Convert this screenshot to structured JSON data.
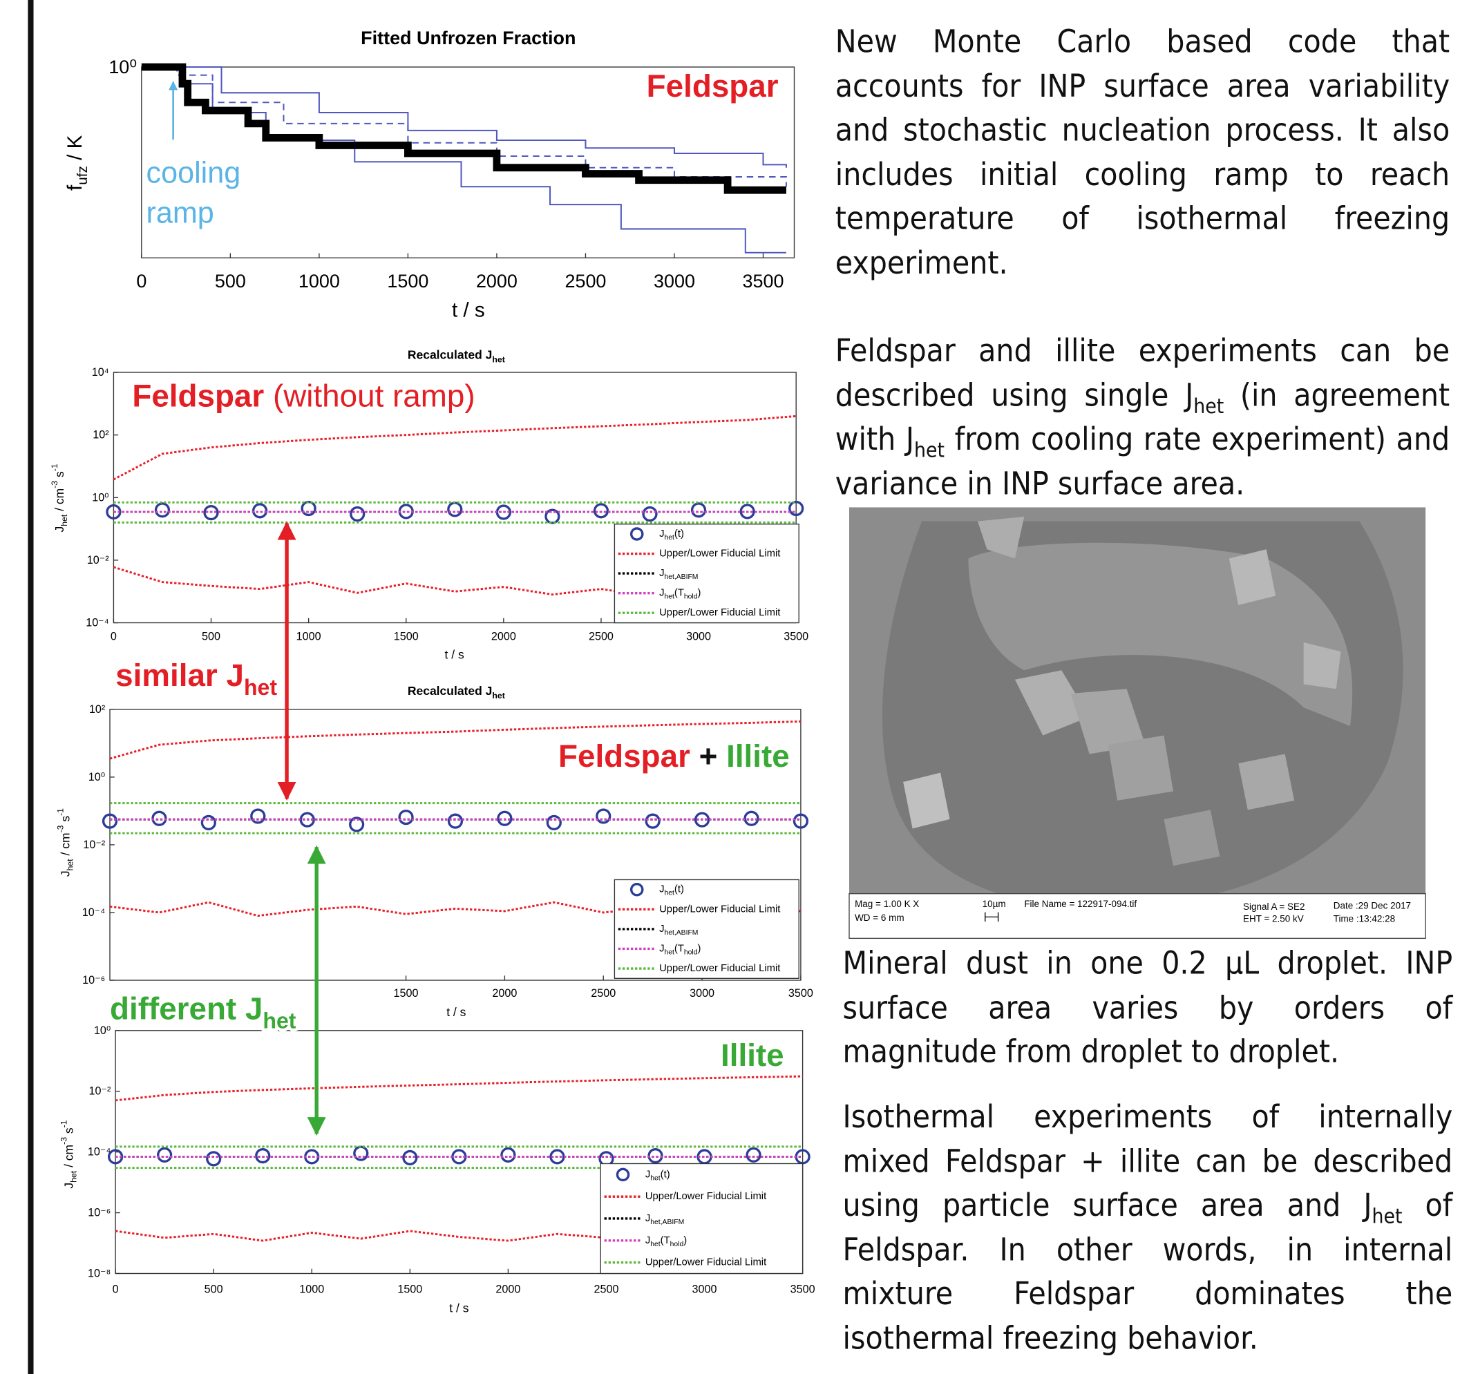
{
  "chart_data": [
    {
      "type": "line",
      "step": true,
      "log_y": true,
      "title": "Fitted Unfrozen Fraction",
      "xlabel": [
        "t / s"
      ],
      "ylabel": [
        "f",
        {
          "sub": "ufz"
        },
        " / K"
      ],
      "xlim": [
        0,
        3675
      ],
      "ylim": [
        0.3,
        1
      ],
      "xticks": [
        0,
        500,
        1000,
        1500,
        2000,
        2500,
        3000,
        3500
      ],
      "yticks": [
        {
          "value": 1,
          "label": "10⁰"
        }
      ],
      "series": [
        {
          "color": "#5058c0",
          "width": 1.5,
          "x": [
            0,
            250,
            450,
            1000,
            1500,
            2000,
            2500,
            3000,
            3500,
            3630
          ],
          "values": [
            1,
            1,
            0.85,
            0.75,
            0.67,
            0.63,
            0.6,
            0.58,
            0.54,
            0.53
          ]
        },
        {
          "color": "#5058c0",
          "width": 1.5,
          "x": [
            0,
            220,
            400,
            700,
            1200,
            1800,
            2300,
            2700,
            3400,
            3630
          ],
          "values": [
            1,
            0.9,
            0.75,
            0.63,
            0.55,
            0.47,
            0.42,
            0.36,
            0.31,
            0.31
          ]
        },
        {
          "color": "#5058c0",
          "width": 1.5,
          "dash": "dashed",
          "x": [
            0,
            200,
            400,
            800,
            1500,
            2000,
            2500,
            3000,
            3630
          ],
          "values": [
            1,
            0.95,
            0.8,
            0.7,
            0.62,
            0.57,
            0.53,
            0.5,
            0.47
          ]
        },
        {
          "color": "#000000",
          "width": 8,
          "x": [
            0,
            200,
            230,
            260,
            360,
            600,
            700,
            1000,
            1500,
            2000,
            2500,
            2800,
            3300,
            3630
          ],
          "values": [
            1,
            1,
            0.9,
            0.8,
            0.76,
            0.7,
            0.64,
            0.61,
            0.58,
            0.53,
            0.51,
            0.49,
            0.46,
            0.46
          ]
        }
      ],
      "annotations": [
        {
          "parts": [
            {
              "text": "Feldspar",
              "color": "#e31e24",
              "bold": true
            }
          ]
        },
        {
          "parts": [
            {
              "text": "cooling",
              "color": "#5ab4e5"
            }
          ]
        },
        {
          "parts": [
            {
              "text": "ramp",
              "color": "#5ab4e5"
            }
          ]
        }
      ]
    },
    {
      "type": "line",
      "log_y": true,
      "legend": true,
      "title": [
        "Recalculated J",
        {
          "sub": "het"
        }
      ],
      "xlabel": [
        "t / s"
      ],
      "ylabel": [
        "J",
        {
          "sub": "het"
        },
        " / cm",
        {
          "sup": "-3"
        },
        " s",
        {
          "sup": "-1"
        }
      ],
      "xlim": [
        0,
        3500
      ],
      "ylim": [
        0.0001,
        10000
      ],
      "xticks": [
        0,
        500,
        1000,
        1500,
        2000,
        2500,
        3000,
        3500
      ],
      "yticks": [
        {
          "value": 0.0001,
          "label": "10⁻⁴"
        },
        {
          "value": 0.01,
          "label": "10⁻²"
        },
        {
          "value": 1,
          "label": "10⁰"
        },
        {
          "value": 100,
          "label": "10²"
        },
        {
          "value": 10000,
          "label": "10⁴"
        }
      ],
      "x": [
        0,
        250,
        500,
        750,
        1000,
        1250,
        1500,
        1750,
        2000,
        2250,
        2500,
        2750,
        3000,
        3250,
        3500
      ],
      "series": [
        {
          "name": [
            "J",
            {
              "sub": "het"
            },
            "(t)"
          ],
          "style": "markers",
          "color": "#2c3d99",
          "values": [
            0.35,
            0.4,
            0.33,
            0.38,
            0.45,
            0.3,
            0.36,
            0.42,
            0.34,
            0.25,
            0.38,
            0.3,
            0.4,
            0.36,
            0.45
          ]
        },
        {
          "name": "Upper/Lower Fiducial Limit",
          "dash": "dotted",
          "color": "#e8202a",
          "values": [
            3.8,
            25,
            40,
            55,
            70,
            85,
            100,
            120,
            140,
            165,
            190,
            220,
            260,
            300,
            400
          ]
        },
        {
          "dash": "dotted",
          "color": "#e8202a",
          "values": [
            0.006,
            0.002,
            0.0015,
            0.0012,
            0.002,
            0.0009,
            0.0018,
            0.001,
            0.0014,
            0.0008,
            0.0012,
            0.0007,
            0.001,
            0.0009,
            0.0011
          ]
        },
        {
          "name": [
            "J",
            {
              "sub": "het,ABIFM"
            }
          ],
          "dash": "dotted",
          "color": "#000000",
          "x": [
            0,
            3500
          ],
          "values": [
            0.35,
            0.35
          ]
        },
        {
          "name": [
            "J",
            {
              "sub": "het"
            },
            "(T",
            {
              "sub": "hold"
            },
            ")"
          ],
          "dash": "dotted",
          "color": "#d040c0",
          "x": [
            0,
            3500
          ],
          "values": [
            0.35,
            0.35
          ]
        },
        {
          "name": "Upper/Lower Fiducial Limit",
          "dash": "dotted",
          "color": "#5cb83c",
          "x": [
            0,
            3500
          ],
          "values": [
            0.7,
            0.7
          ]
        },
        {
          "dash": "dotted",
          "color": "#5cb83c",
          "x": [
            0,
            3500
          ],
          "values": [
            0.16,
            0.16
          ]
        }
      ],
      "annotations": [
        {
          "parts": [
            {
              "text": "Feldspar",
              "color": "#e31e24",
              "bold": true
            },
            {
              "text": " (without ramp)",
              "color": "#e31e24"
            }
          ]
        }
      ]
    },
    {
      "type": "line",
      "log_y": true,
      "legend": true,
      "title": [
        "Recalculated J",
        {
          "sub": "het"
        }
      ],
      "xlabel": [
        "t / s"
      ],
      "ylabel": [
        "J",
        {
          "sub": "het"
        },
        " / cm",
        {
          "sup": "-3"
        },
        " s",
        {
          "sup": "-1"
        }
      ],
      "xlim": [
        0,
        3500
      ],
      "ylim": [
        1e-06,
        100
      ],
      "xticks": [
        1500,
        2000,
        2500,
        3000,
        3500
      ],
      "yticks": [
        {
          "value": 1e-06,
          "label": "10⁻⁶"
        },
        {
          "value": 0.0001,
          "label": "10⁻⁴"
        },
        {
          "value": 0.01,
          "label": "10⁻²"
        },
        {
          "value": 1,
          "label": "10⁰"
        },
        {
          "value": 100,
          "label": "10²"
        }
      ],
      "x": [
        0,
        250,
        500,
        750,
        1000,
        1250,
        1500,
        1750,
        2000,
        2250,
        2500,
        2750,
        3000,
        3250,
        3500
      ],
      "series": [
        {
          "name": [
            "J",
            {
              "sub": "het"
            },
            "(t)"
          ],
          "style": "markers",
          "color": "#2c3d99",
          "values": [
            0.05,
            0.06,
            0.045,
            0.07,
            0.055,
            0.04,
            0.065,
            0.05,
            0.06,
            0.045,
            0.07,
            0.05,
            0.055,
            0.06,
            0.05
          ]
        },
        {
          "name": "Upper/Lower Fiducial Limit",
          "dash": "dotted",
          "color": "#e8202a",
          "values": [
            3.5,
            9,
            12,
            14,
            16,
            18,
            20,
            22,
            25,
            28,
            31,
            34,
            37,
            40,
            44
          ]
        },
        {
          "dash": "dotted",
          "color": "#e8202a",
          "values": [
            0.00015,
            0.0001,
            0.0002,
            8e-05,
            0.00012,
            0.00015,
            9e-05,
            0.00013,
            0.00011,
            0.0002,
            0.0001,
            0.00014,
            0.0001,
            0.00012,
            0.00011
          ]
        },
        {
          "name": [
            "J",
            {
              "sub": "het,ABIFM"
            }
          ],
          "dash": "dotted",
          "color": "#000000",
          "x": [
            0,
            3500
          ],
          "values": [
            0.056,
            0.056
          ]
        },
        {
          "name": [
            "J",
            {
              "sub": "het"
            },
            "(T",
            {
              "sub": "hold"
            },
            ")"
          ],
          "dash": "dotted",
          "color": "#d040c0",
          "x": [
            0,
            3500
          ],
          "values": [
            0.056,
            0.056
          ]
        },
        {
          "name": "Upper/Lower Fiducial Limit",
          "dash": "dotted",
          "color": "#5cb83c",
          "x": [
            0,
            3500
          ],
          "values": [
            0.17,
            0.17
          ]
        },
        {
          "dash": "dotted",
          "color": "#5cb83c",
          "x": [
            0,
            3500
          ],
          "values": [
            0.022,
            0.022
          ]
        }
      ],
      "annotations": [
        {
          "parts": [
            {
              "text": "Feldspar",
              "color": "#e31e24",
              "bold": true
            },
            {
              "text": " + ",
              "color": "#111111",
              "bold": true
            },
            {
              "text": "Illite",
              "color": "#39a935",
              "bold": true
            }
          ]
        }
      ]
    },
    {
      "type": "line",
      "log_y": true,
      "legend": true,
      "xlabel": [
        "t / s"
      ],
      "ylabel": [
        "J",
        {
          "sub": "het"
        },
        " / cm",
        {
          "sup": "-3"
        },
        " s",
        {
          "sup": "-1"
        }
      ],
      "xlim": [
        0,
        3500
      ],
      "ylim": [
        1e-08,
        1
      ],
      "xticks": [
        0,
        500,
        1000,
        1500,
        2000,
        2500,
        3000,
        3500
      ],
      "yticks": [
        {
          "value": 1e-08,
          "label": "10⁻⁸"
        },
        {
          "value": 1e-06,
          "label": "10⁻⁶"
        },
        {
          "value": 0.0001,
          "label": "10⁻⁴"
        },
        {
          "value": 0.01,
          "label": "10⁻²"
        },
        {
          "value": 1,
          "label": "10⁰"
        }
      ],
      "x": [
        0,
        250,
        500,
        750,
        1000,
        1250,
        1500,
        1750,
        2000,
        2250,
        2500,
        2750,
        3000,
        3250,
        3500
      ],
      "series": [
        {
          "name": [
            "J",
            {
              "sub": "het"
            },
            "(t)"
          ],
          "style": "markers",
          "color": "#2c3d99",
          "values": [
            7e-05,
            8e-05,
            6e-05,
            7.5e-05,
            7e-05,
            9e-05,
            6.5e-05,
            7e-05,
            8e-05,
            7e-05,
            6e-05,
            7.5e-05,
            7e-05,
            8e-05,
            7e-05
          ]
        },
        {
          "name": "Upper/Lower Fiducial Limit",
          "dash": "dotted",
          "color": "#e8202a",
          "values": [
            0.005,
            0.0075,
            0.0095,
            0.011,
            0.0125,
            0.014,
            0.0155,
            0.017,
            0.019,
            0.021,
            0.023,
            0.025,
            0.027,
            0.029,
            0.031
          ]
        },
        {
          "dash": "dotted",
          "color": "#e8202a",
          "values": [
            2.5e-07,
            1.5e-07,
            2e-07,
            1.2e-07,
            2.2e-07,
            1.4e-07,
            2.5e-07,
            1.6e-07,
            1.2e-07,
            2e-07,
            1.5e-07,
            2.4e-07,
            1.8e-07,
            2e-07,
            1.7e-07
          ]
        },
        {
          "name": [
            "J",
            {
              "sub": "het,ABIFM"
            }
          ],
          "dash": "dotted",
          "color": "#000000",
          "x": [
            0,
            3500
          ],
          "values": [
            7e-05,
            7e-05
          ]
        },
        {
          "name": [
            "J",
            {
              "sub": "het"
            },
            "(T",
            {
              "sub": "hold"
            },
            ")"
          ],
          "dash": "dotted",
          "color": "#d040c0",
          "x": [
            0,
            3500
          ],
          "values": [
            7e-05,
            7e-05
          ]
        },
        {
          "name": "Upper/Lower Fiducial Limit",
          "dash": "dotted",
          "color": "#5cb83c",
          "x": [
            0,
            3500
          ],
          "values": [
            0.00015,
            0.00015
          ]
        },
        {
          "dash": "dotted",
          "color": "#5cb83c",
          "x": [
            0,
            3500
          ],
          "values": [
            3e-05,
            3e-05
          ]
        }
      ],
      "annotations": [
        {
          "parts": [
            {
              "text": "Illite",
              "color": "#39a935",
              "bold": true
            }
          ]
        }
      ]
    }
  ],
  "annotations": [
    {
      "parts": [
        {
          "text": "similar J",
          "color": "#e31e24",
          "bold": true
        },
        {
          "sub": "het",
          "color": "#e31e24",
          "bold": true
        }
      ]
    },
    {
      "parts": [
        {
          "text": "different J",
          "color": "#39a935",
          "bold": true
        },
        {
          "sub": "het",
          "color": "#39a935",
          "bold": true
        }
      ]
    }
  ],
  "text": {
    "paragraphs": [
      [
        "New Monte Carlo based code that accounts for INP surface area variability and stochastic nucleation process. It also includes initial cooling ramp to reach temperature of isothermal freezing experiment."
      ],
      [
        "Feldspar and illite experiments can be described using single J",
        {
          "sub": "het"
        },
        " (in agreement with J",
        {
          "sub": "het"
        },
        " from cooling rate experiment) and variance in INP surface area."
      ],
      [
        "Mineral dust in one 0.2 µL droplet. INP surface area varies by orders of magnitude from droplet to droplet."
      ],
      [
        "Isothermal experiments of internally mixed Feldspar + illite can be described using particle surface area and J",
        {
          "sub": "het"
        },
        " of Feldspar. In other words, in internal mixture Feldspar dominates the isothermal freezing behavior."
      ]
    ]
  },
  "sem_info": {
    "mag": "Mag =  1.00 K X",
    "wd": "WD =   6 mm",
    "scale": "10µm",
    "file": "File Name = 122917-094.tif",
    "signal": "Signal A = SE2",
    "eht": "EHT =  2.50 kV",
    "date": "Date :29 Dec 2017",
    "time": "Time :13:42:28"
  }
}
